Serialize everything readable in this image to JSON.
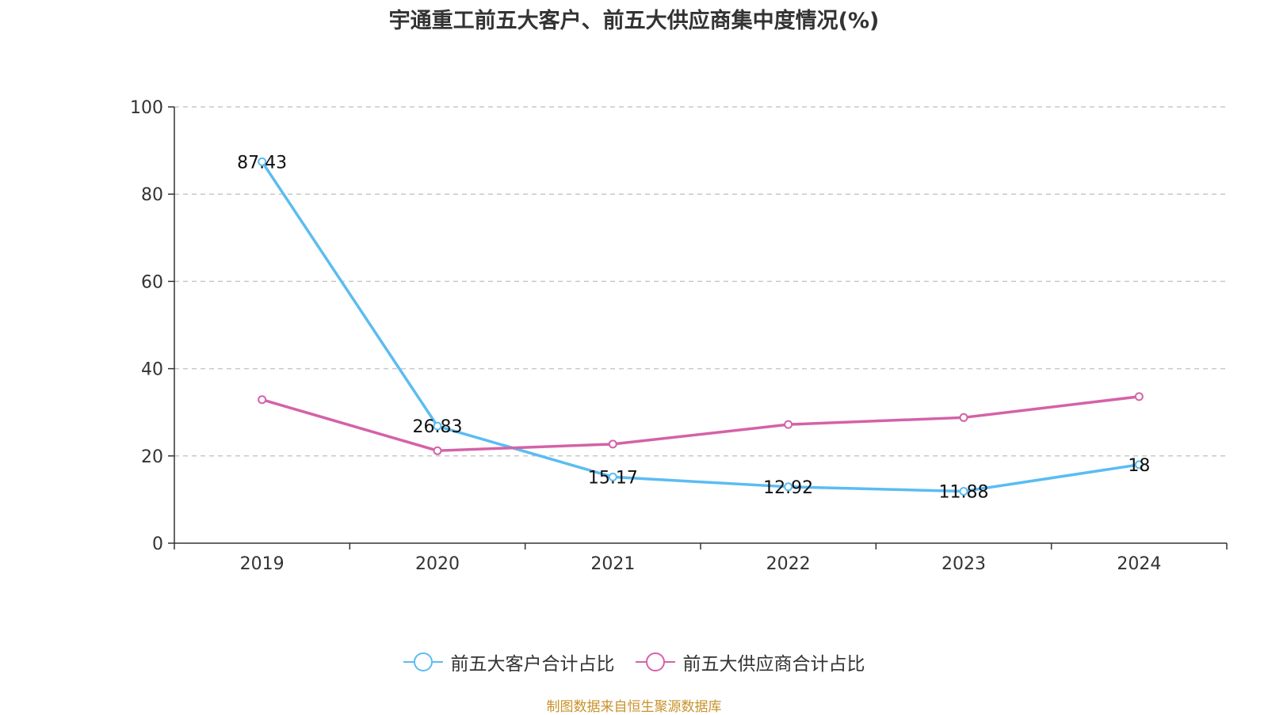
{
  "title": "宇通重工前五大客户、前五大供应商集中度情况(%)",
  "source": "制图数据来自恒生聚源数据库",
  "chart_data": {
    "type": "line",
    "title": "宇通重工前五大客户、前五大供应商集中度情况(%)",
    "categories": [
      "2019",
      "2020",
      "2021",
      "2022",
      "2023",
      "2024"
    ],
    "ylim": [
      0,
      100
    ],
    "yticks": [
      "0",
      "20",
      "40",
      "60",
      "80",
      "100"
    ],
    "grid": true,
    "legend_position": "bottom-center",
    "series": [
      {
        "name": "前五大客户合计占比",
        "color": "#5bbcf2",
        "values": [
          87.43,
          26.83,
          15.17,
          12.92,
          11.88,
          18
        ],
        "labels": [
          "87.43",
          "26.83",
          "15.17",
          "12.92",
          "11.88",
          "18"
        ]
      },
      {
        "name": "前五大供应商合计占比",
        "color": "#d462a8",
        "values": [
          32.9,
          21.2,
          22.7,
          27.2,
          28.8,
          33.6
        ]
      }
    ]
  }
}
